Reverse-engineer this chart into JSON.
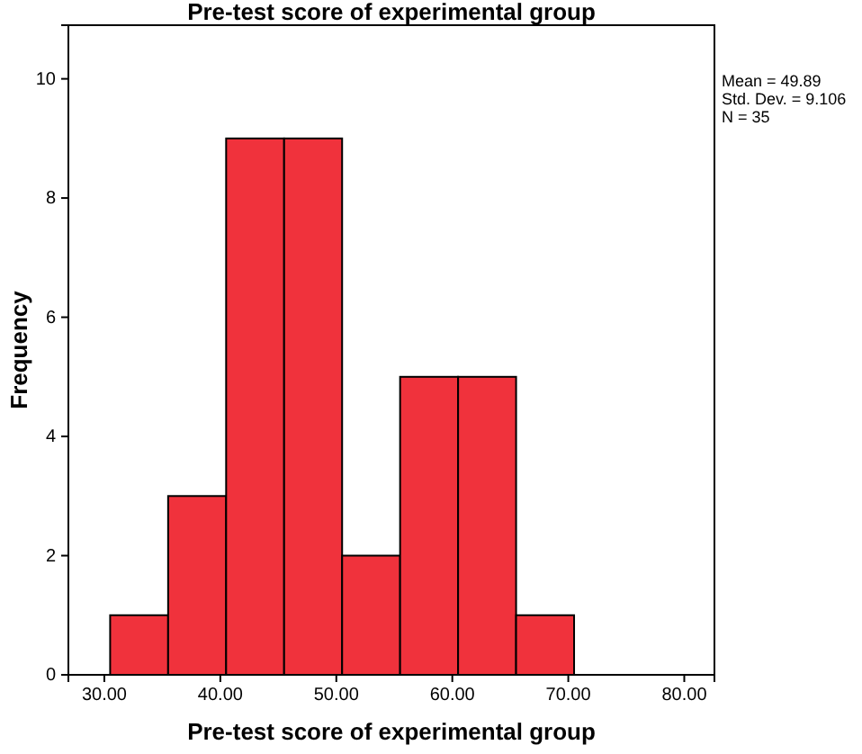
{
  "chart_data": {
    "type": "histogram",
    "title": "Pre-test score of experimental group",
    "xlabel": "Pre-test score of experimental group",
    "ylabel": "Frequency",
    "bins": [
      30.5,
      35.5,
      40.5,
      45.5,
      50.5,
      55.5,
      60.5,
      65.5,
      70.5
    ],
    "values": [
      1,
      3,
      9,
      9,
      2,
      5,
      5,
      1
    ],
    "color": "#f0323c",
    "xlim": [
      26.9,
      82.6
    ],
    "xticks": [
      {
        "value": 30,
        "label": "30.00"
      },
      {
        "value": 40,
        "label": "40.00"
      },
      {
        "value": 50,
        "label": "50.00"
      },
      {
        "value": 60,
        "label": "60.00"
      },
      {
        "value": 70,
        "label": "70.00"
      },
      {
        "value": 80,
        "label": "80.00"
      }
    ],
    "ylim": [
      0,
      10.9
    ],
    "yticks": [
      0,
      2,
      4,
      6,
      8,
      10
    ],
    "annotations": [
      "Mean = 49.89",
      "Std. Dev. = 9.106",
      "N = 35"
    ],
    "grid": false
  }
}
